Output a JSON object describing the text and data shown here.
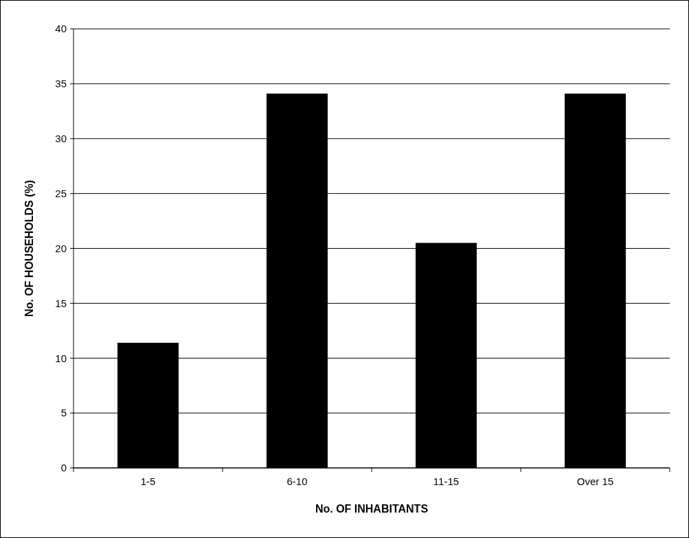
{
  "chart_data": {
    "type": "bar",
    "xlabel": "No. OF INHABITANTS",
    "ylabel": "No. OF HOUSEHOLDS (%)",
    "categories": [
      "1-5",
      "6-10",
      "11-15",
      "Over 15"
    ],
    "values": [
      11.4,
      34.1,
      20.5,
      34.1
    ],
    "color": "#000000",
    "ylim": [
      0,
      40
    ],
    "yticks": [
      0,
      5,
      10,
      15,
      20,
      25,
      30,
      35,
      40
    ],
    "grid": "y"
  }
}
